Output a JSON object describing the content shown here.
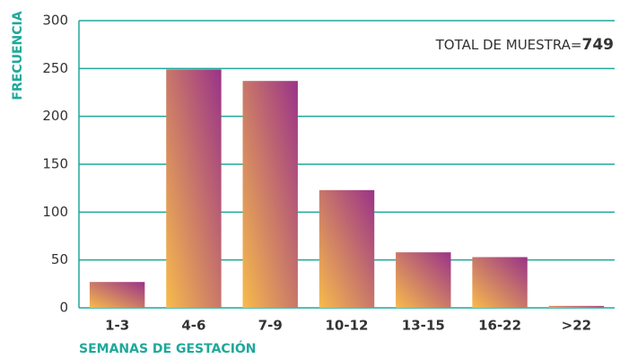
{
  "chart_data": {
    "type": "bar",
    "categories": [
      "1-3",
      "4-6",
      "7-9",
      "10-12",
      "13-15",
      "16-22",
      ">22"
    ],
    "values": [
      27,
      249,
      237,
      123,
      58,
      53,
      2
    ],
    "gradient_colors": [
      "#f7bb4c",
      "#9a3388"
    ],
    "grid_color": "#1fa89a",
    "ylim": [
      0,
      300
    ],
    "yticks": [
      0,
      50,
      100,
      150,
      200,
      250,
      300
    ],
    "grid": true,
    "x_label": "SEMANAS DE GESTACIÓN",
    "y_label": "FRECUENCIA",
    "annotation": "TOTAL DE MUESTRA=",
    "annotation_total": 749
  }
}
